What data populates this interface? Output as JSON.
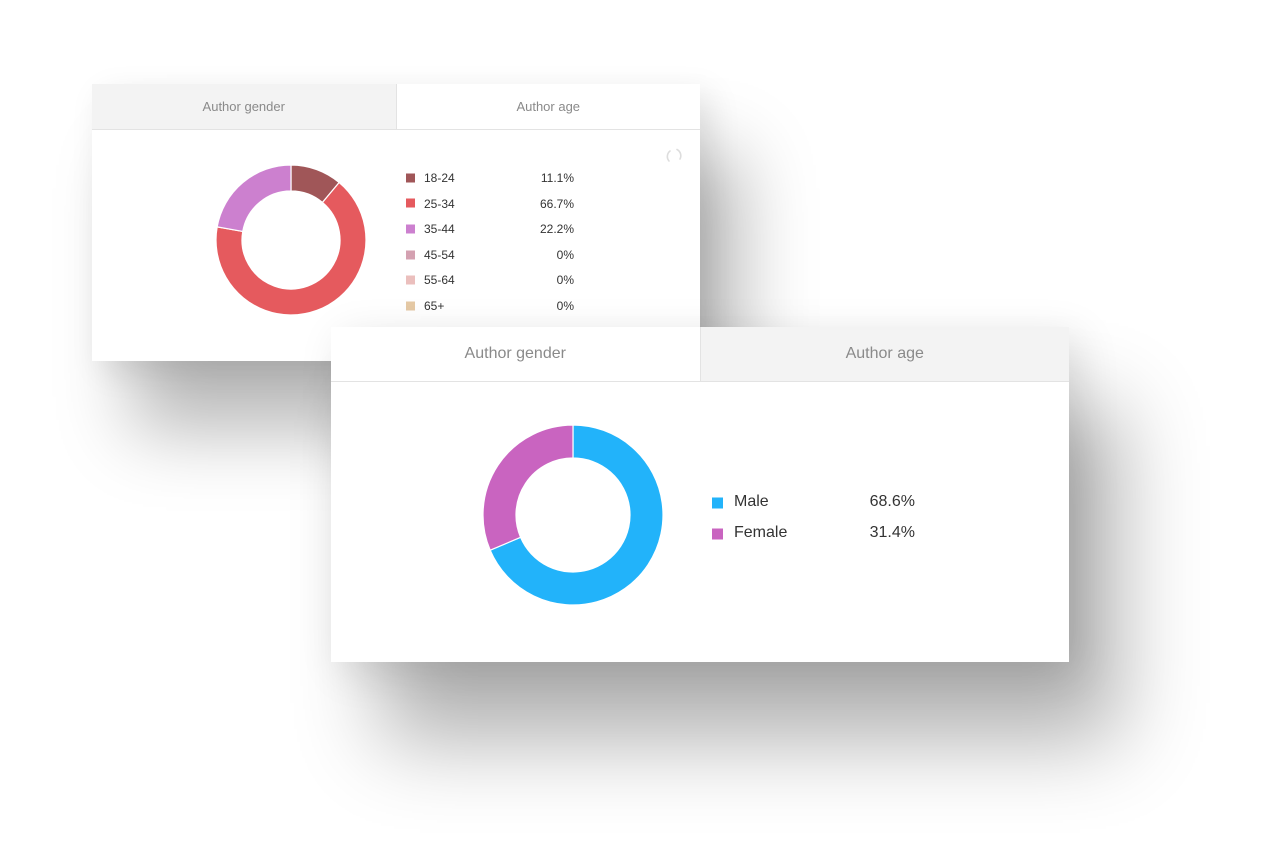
{
  "age_card": {
    "tabs": [
      {
        "label": "Author gender",
        "active": false
      },
      {
        "label": "Author age",
        "active": true
      }
    ],
    "loading_icon": "spinner-icon"
  },
  "gender_card": {
    "tabs": [
      {
        "label": "Author gender",
        "active": true
      },
      {
        "label": "Author age",
        "active": false
      }
    ]
  },
  "chart_data": [
    {
      "type": "pie",
      "variant": "donut",
      "title": "",
      "categories": [
        "18-24",
        "25-34",
        "35-44",
        "45-54",
        "55-64",
        "65+"
      ],
      "values": [
        11.1,
        66.7,
        22.2,
        0,
        0,
        0
      ],
      "value_labels": [
        "11.1%",
        "66.7%",
        "22.2%",
        "0%",
        "0%",
        "0%"
      ],
      "colors": [
        "#a05658",
        "#e55a5e",
        "#cc80cf",
        "#d4a1b1",
        "#ebbfbd",
        "#e5c9a5"
      ],
      "legend": "right"
    },
    {
      "type": "pie",
      "variant": "donut",
      "title": "",
      "categories": [
        "Male",
        "Female"
      ],
      "values": [
        68.6,
        31.4
      ],
      "value_labels": [
        "68.6%",
        "31.4%"
      ],
      "colors": [
        "#22b3fa",
        "#c964c0"
      ],
      "legend": "right"
    }
  ]
}
